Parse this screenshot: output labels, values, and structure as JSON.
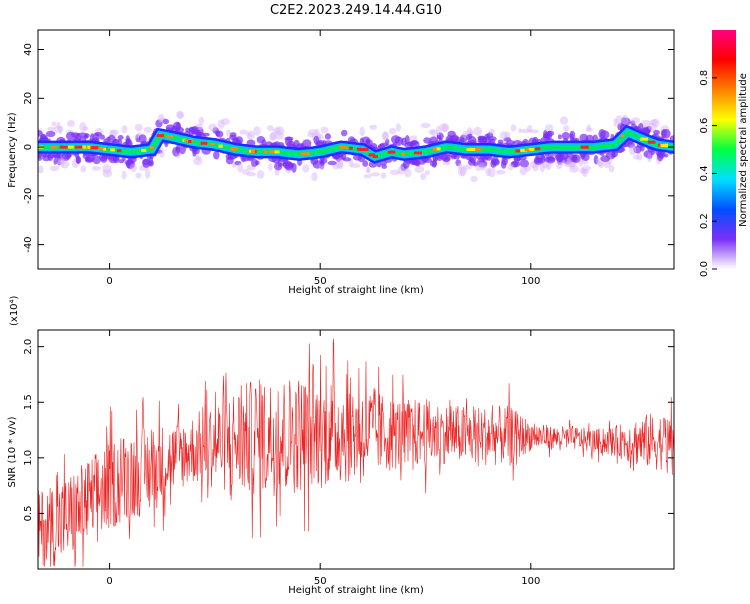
{
  "figure": {
    "title": "C2E2.2023.249.14.44.G10"
  },
  "chart_data": [
    {
      "type": "heatmap",
      "xlabel": "Height of straight line (km)",
      "ylabel": "Frequency (Hz)",
      "xlim": [
        -17,
        134
      ],
      "ylim": [
        -50,
        48
      ],
      "xticks": [
        0,
        50,
        100
      ],
      "yticks": [
        -40,
        -20,
        0,
        20,
        40
      ],
      "ridge": {
        "x": [
          -17,
          -10,
          -5,
          0,
          5,
          10,
          12,
          15,
          20,
          25,
          30,
          35,
          40,
          45,
          50,
          55,
          60,
          63,
          67,
          70,
          75,
          80,
          85,
          90,
          95,
          100,
          105,
          110,
          115,
          120,
          123,
          127,
          130,
          134
        ],
        "y": [
          0,
          0,
          0,
          -1,
          -2,
          -1,
          5,
          4,
          2,
          1,
          -1,
          -2,
          -2,
          -3,
          -2,
          0,
          -1,
          -4,
          -2,
          -3,
          -2,
          0,
          -1,
          -1,
          -2,
          -1,
          0,
          0,
          0,
          1,
          6,
          3,
          1,
          0
        ]
      },
      "colorbar": {
        "label": "Normalized spectral amplitude",
        "ticks": [
          "0.0",
          "0.2",
          "0.4",
          "0.6",
          "0.8"
        ],
        "colors": [
          "#ffffff",
          "#7b2ff7",
          "#0050ff",
          "#00e0ff",
          "#00ff40",
          "#ffff00",
          "#ff8000",
          "#ff0000",
          "#ff0080"
        ]
      }
    },
    {
      "type": "line",
      "xlabel": "Height of straight line (km)",
      "ylabel": "SNR (10 * v/v)",
      "scale_label": "(x10⁴)",
      "xlim": [
        -17,
        134
      ],
      "ylim": [
        0,
        2.15
      ],
      "xticks": [
        0,
        50,
        100
      ],
      "yticks": [
        "0.5",
        "1.0",
        "1.5",
        "2.0"
      ],
      "color": "#ee2222",
      "envelope": {
        "x": [
          -17,
          -10,
          -5,
          0,
          5,
          10,
          15,
          20,
          25,
          30,
          35,
          40,
          45,
          50,
          55,
          60,
          65,
          70,
          75,
          80,
          85,
          90,
          95,
          100,
          105,
          110,
          115,
          120,
          125,
          130,
          134
        ],
        "mean": [
          0.35,
          0.45,
          0.6,
          0.75,
          0.85,
          0.9,
          1.0,
          1.08,
          1.12,
          1.15,
          1.18,
          1.2,
          1.22,
          1.22,
          1.25,
          1.25,
          1.22,
          1.22,
          1.22,
          1.22,
          1.2,
          1.2,
          1.2,
          1.2,
          1.18,
          1.18,
          1.15,
          1.15,
          1.15,
          1.15,
          1.15
        ],
        "amplitude": [
          0.4,
          0.45,
          0.45,
          0.45,
          0.45,
          0.45,
          0.35,
          0.35,
          0.45,
          0.55,
          0.6,
          0.6,
          0.6,
          0.55,
          0.55,
          0.5,
          0.4,
          0.35,
          0.35,
          0.3,
          0.3,
          0.3,
          0.3,
          0.15,
          0.12,
          0.12,
          0.12,
          0.15,
          0.25,
          0.3,
          0.25
        ]
      }
    }
  ]
}
